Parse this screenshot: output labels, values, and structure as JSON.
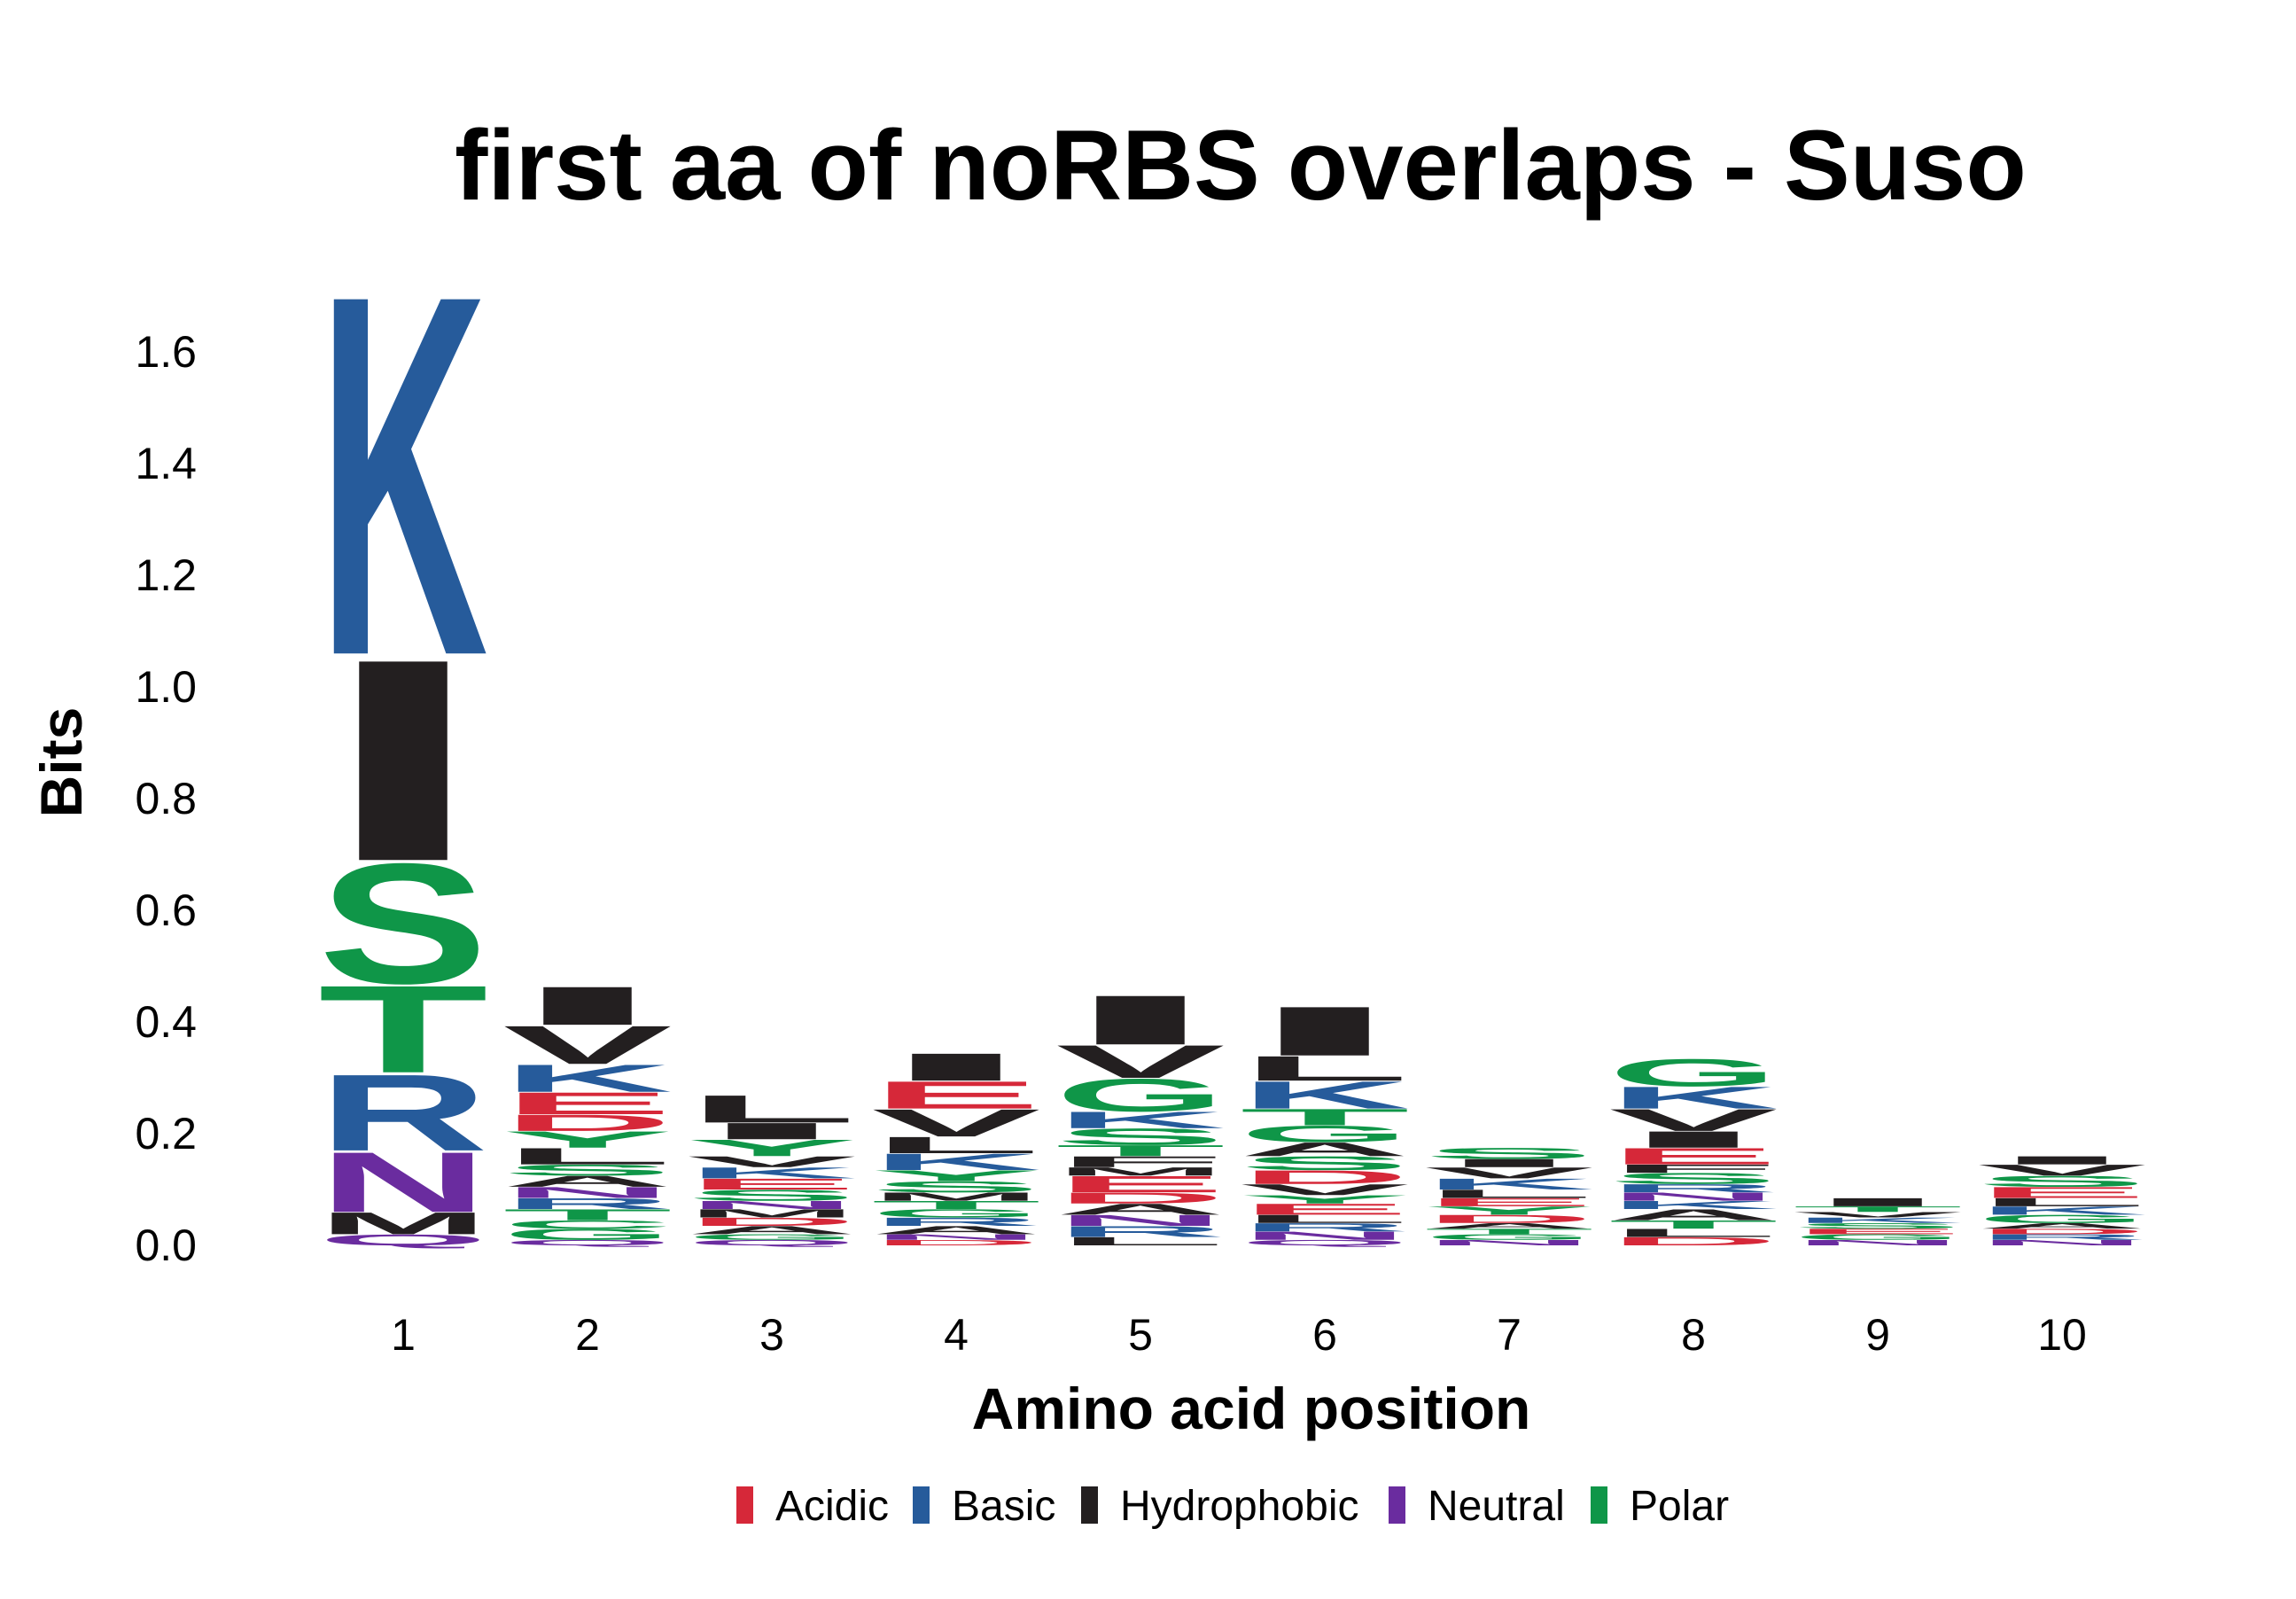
{
  "chart_data": {
    "type": "sequence-logo",
    "title": "first aa of noRBS overlaps - Suso",
    "xlabel": "Amino acid position",
    "ylabel": "Bits",
    "ylim": [
      0,
      1.72
    ],
    "yticks": [
      "0.0",
      "0.2",
      "0.4",
      "0.6",
      "0.8",
      "1.0",
      "1.2",
      "1.4",
      "1.6"
    ],
    "ytick_values": [
      0,
      0.2,
      0.4,
      0.6,
      0.8,
      1.0,
      1.2,
      1.4,
      1.6
    ],
    "legend_position": "bottom",
    "legend": [
      {
        "label": "Acidic",
        "color": "#d62839"
      },
      {
        "label": "Basic",
        "color": "#265b9b"
      },
      {
        "label": "Hydrophobic",
        "color": "#231f20"
      },
      {
        "label": "Neutral",
        "color": "#6a2c9f"
      },
      {
        "label": "Polar",
        "color": "#0f9648"
      }
    ],
    "class_colors": {
      "Acidic": "#d62839",
      "Basic": "#265b9b",
      "Hydrophobic": "#231f20",
      "Neutral": "#6a2c9f",
      "Polar": "#0f9648"
    },
    "positions": [
      {
        "label": "1",
        "stack": [
          {
            "aa": "Q",
            "class": "Neutral",
            "bits": 0.02
          },
          {
            "aa": "M",
            "class": "Hydrophobic",
            "bits": 0.04
          },
          {
            "aa": "N",
            "class": "Neutral",
            "bits": 0.11
          },
          {
            "aa": "R",
            "class": "Basic",
            "bits": 0.14
          },
          {
            "aa": "T",
            "class": "Polar",
            "bits": 0.16
          },
          {
            "aa": "S",
            "class": "Polar",
            "bits": 0.22
          },
          {
            "aa": "I",
            "class": "Hydrophobic",
            "bits": 0.37
          },
          {
            "aa": "K",
            "class": "Basic",
            "bits": 0.66
          }
        ]
      },
      {
        "label": "2",
        "stack": [
          {
            "aa": "Q",
            "class": "Neutral",
            "bits": 0.01
          },
          {
            "aa": "G",
            "class": "Polar",
            "bits": 0.02
          },
          {
            "aa": "C",
            "class": "Polar",
            "bits": 0.015
          },
          {
            "aa": "T",
            "class": "Polar",
            "bits": 0.02
          },
          {
            "aa": "R",
            "class": "Basic",
            "bits": 0.02
          },
          {
            "aa": "N",
            "class": "Neutral",
            "bits": 0.02
          },
          {
            "aa": "A",
            "class": "Hydrophobic",
            "bits": 0.02
          },
          {
            "aa": "S",
            "class": "Polar",
            "bits": 0.02
          },
          {
            "aa": "L",
            "class": "Hydrophobic",
            "bits": 0.03
          },
          {
            "aa": "Y",
            "class": "Polar",
            "bits": 0.03
          },
          {
            "aa": "D",
            "class": "Acidic",
            "bits": 0.03
          },
          {
            "aa": "E",
            "class": "Acidic",
            "bits": 0.04
          },
          {
            "aa": "K",
            "class": "Basic",
            "bits": 0.05
          },
          {
            "aa": "V",
            "class": "Hydrophobic",
            "bits": 0.07
          },
          {
            "aa": "I",
            "class": "Hydrophobic",
            "bits": 0.07
          }
        ]
      },
      {
        "label": "3",
        "stack": [
          {
            "aa": "Q",
            "class": "Neutral",
            "bits": 0.01
          },
          {
            "aa": "G",
            "class": "Polar",
            "bits": 0.01
          },
          {
            "aa": "A",
            "class": "Hydrophobic",
            "bits": 0.015
          },
          {
            "aa": "D",
            "class": "Acidic",
            "bits": 0.015
          },
          {
            "aa": "M",
            "class": "Hydrophobic",
            "bits": 0.015
          },
          {
            "aa": "N",
            "class": "Neutral",
            "bits": 0.015
          },
          {
            "aa": "S",
            "class": "Polar",
            "bits": 0.02
          },
          {
            "aa": "E",
            "class": "Acidic",
            "bits": 0.02
          },
          {
            "aa": "K",
            "class": "Basic",
            "bits": 0.02
          },
          {
            "aa": "V",
            "class": "Hydrophobic",
            "bits": 0.02
          },
          {
            "aa": "Y",
            "class": "Polar",
            "bits": 0.03
          },
          {
            "aa": "I",
            "class": "Hydrophobic",
            "bits": 0.03
          },
          {
            "aa": "L",
            "class": "Hydrophobic",
            "bits": 0.05
          }
        ]
      },
      {
        "label": "4",
        "stack": [
          {
            "aa": "D",
            "class": "Acidic",
            "bits": 0.01
          },
          {
            "aa": "N",
            "class": "Neutral",
            "bits": 0.01
          },
          {
            "aa": "A",
            "class": "Hydrophobic",
            "bits": 0.015
          },
          {
            "aa": "R",
            "class": "Basic",
            "bits": 0.015
          },
          {
            "aa": "G",
            "class": "Polar",
            "bits": 0.015
          },
          {
            "aa": "T",
            "class": "Polar",
            "bits": 0.015
          },
          {
            "aa": "M",
            "class": "Hydrophobic",
            "bits": 0.015
          },
          {
            "aa": "S",
            "class": "Polar",
            "bits": 0.02
          },
          {
            "aa": "Y",
            "class": "Polar",
            "bits": 0.02
          },
          {
            "aa": "K",
            "class": "Basic",
            "bits": 0.03
          },
          {
            "aa": "L",
            "class": "Hydrophobic",
            "bits": 0.03
          },
          {
            "aa": "V",
            "class": "Hydrophobic",
            "bits": 0.05
          },
          {
            "aa": "E",
            "class": "Acidic",
            "bits": 0.05
          },
          {
            "aa": "I",
            "class": "Hydrophobic",
            "bits": 0.05
          }
        ]
      },
      {
        "label": "5",
        "stack": [
          {
            "aa": "L",
            "class": "Hydrophobic",
            "bits": 0.015
          },
          {
            "aa": "R",
            "class": "Basic",
            "bits": 0.02
          },
          {
            "aa": "N",
            "class": "Neutral",
            "bits": 0.02
          },
          {
            "aa": "A",
            "class": "Hydrophobic",
            "bits": 0.02
          },
          {
            "aa": "D",
            "class": "Acidic",
            "bits": 0.02
          },
          {
            "aa": "E",
            "class": "Acidic",
            "bits": 0.03
          },
          {
            "aa": "M",
            "class": "Hydrophobic",
            "bits": 0.015
          },
          {
            "aa": "F",
            "class": "Hydrophobic",
            "bits": 0.02
          },
          {
            "aa": "T",
            "class": "Polar",
            "bits": 0.02
          },
          {
            "aa": "S",
            "class": "Polar",
            "bits": 0.03
          },
          {
            "aa": "K",
            "class": "Basic",
            "bits": 0.03
          },
          {
            "aa": "G",
            "class": "Polar",
            "bits": 0.06
          },
          {
            "aa": "V",
            "class": "Hydrophobic",
            "bits": 0.06
          },
          {
            "aa": "I",
            "class": "Hydrophobic",
            "bits": 0.09
          }
        ]
      },
      {
        "label": "6",
        "stack": [
          {
            "aa": "Q",
            "class": "Neutral",
            "bits": 0.01
          },
          {
            "aa": "N",
            "class": "Neutral",
            "bits": 0.015
          },
          {
            "aa": "R",
            "class": "Basic",
            "bits": 0.015
          },
          {
            "aa": "L",
            "class": "Hydrophobic",
            "bits": 0.015
          },
          {
            "aa": "E",
            "class": "Acidic",
            "bits": 0.02
          },
          {
            "aa": "Y",
            "class": "Polar",
            "bits": 0.015
          },
          {
            "aa": "V",
            "class": "Hydrophobic",
            "bits": 0.02
          },
          {
            "aa": "D",
            "class": "Acidic",
            "bits": 0.025
          },
          {
            "aa": "S",
            "class": "Polar",
            "bits": 0.025
          },
          {
            "aa": "A",
            "class": "Hydrophobic",
            "bits": 0.025
          },
          {
            "aa": "G",
            "class": "Polar",
            "bits": 0.03
          },
          {
            "aa": "T",
            "class": "Polar",
            "bits": 0.03
          },
          {
            "aa": "K",
            "class": "Basic",
            "bits": 0.05
          },
          {
            "aa": "L",
            "class": "Hydrophobic",
            "bits": 0.045
          },
          {
            "aa": "I",
            "class": "Hydrophobic",
            "bits": 0.09
          }
        ]
      },
      {
        "label": "7",
        "stack": [
          {
            "aa": "N",
            "class": "Neutral",
            "bits": 0.01
          },
          {
            "aa": "G",
            "class": "Polar",
            "bits": 0.01
          },
          {
            "aa": "T",
            "class": "Polar",
            "bits": 0.01
          },
          {
            "aa": "A",
            "class": "Hydrophobic",
            "bits": 0.01
          },
          {
            "aa": "D",
            "class": "Acidic",
            "bits": 0.015
          },
          {
            "aa": "Y",
            "class": "Polar",
            "bits": 0.015
          },
          {
            "aa": "E",
            "class": "Acidic",
            "bits": 0.015
          },
          {
            "aa": "L",
            "class": "Hydrophobic",
            "bits": 0.015
          },
          {
            "aa": "K",
            "class": "Basic",
            "bits": 0.02
          },
          {
            "aa": "V",
            "class": "Hydrophobic",
            "bits": 0.02
          },
          {
            "aa": "I",
            "class": "Hydrophobic",
            "bits": 0.015
          },
          {
            "aa": "S",
            "class": "Polar",
            "bits": 0.02
          }
        ]
      },
      {
        "label": "8",
        "stack": [
          {
            "aa": "D",
            "class": "Acidic",
            "bits": 0.015
          },
          {
            "aa": "L",
            "class": "Hydrophobic",
            "bits": 0.015
          },
          {
            "aa": "T",
            "class": "Polar",
            "bits": 0.015
          },
          {
            "aa": "A",
            "class": "Hydrophobic",
            "bits": 0.02
          },
          {
            "aa": "K",
            "class": "Basic",
            "bits": 0.015
          },
          {
            "aa": "N",
            "class": "Neutral",
            "bits": 0.015
          },
          {
            "aa": "R",
            "class": "Basic",
            "bits": 0.015
          },
          {
            "aa": "S",
            "class": "Polar",
            "bits": 0.02
          },
          {
            "aa": "F",
            "class": "Hydrophobic",
            "bits": 0.015
          },
          {
            "aa": "E",
            "class": "Acidic",
            "bits": 0.03
          },
          {
            "aa": "I",
            "class": "Hydrophobic",
            "bits": 0.03
          },
          {
            "aa": "V",
            "class": "Hydrophobic",
            "bits": 0.04
          },
          {
            "aa": "K",
            "class": "Basic",
            "bits": 0.04
          },
          {
            "aa": "G",
            "class": "Polar",
            "bits": 0.05
          }
        ]
      },
      {
        "label": "9",
        "stack": [
          {
            "aa": "N",
            "class": "Neutral",
            "bits": 0.01
          },
          {
            "aa": "G",
            "class": "Polar",
            "bits": 0.01
          },
          {
            "aa": "E",
            "class": "Acidic",
            "bits": 0.01
          },
          {
            "aa": "S",
            "class": "Polar",
            "bits": 0.01
          },
          {
            "aa": "K",
            "class": "Basic",
            "bits": 0.01
          },
          {
            "aa": "V",
            "class": "Hydrophobic",
            "bits": 0.01
          },
          {
            "aa": "T",
            "class": "Polar",
            "bits": 0.01
          },
          {
            "aa": "I",
            "class": "Hydrophobic",
            "bits": 0.015
          }
        ]
      },
      {
        "label": "10",
        "stack": [
          {
            "aa": "N",
            "class": "Neutral",
            "bits": 0.01
          },
          {
            "aa": "R",
            "class": "Basic",
            "bits": 0.01
          },
          {
            "aa": "D",
            "class": "Acidic",
            "bits": 0.01
          },
          {
            "aa": "A",
            "class": "Hydrophobic",
            "bits": 0.01
          },
          {
            "aa": "G",
            "class": "Polar",
            "bits": 0.015
          },
          {
            "aa": "K",
            "class": "Basic",
            "bits": 0.015
          },
          {
            "aa": "L",
            "class": "Hydrophobic",
            "bits": 0.015
          },
          {
            "aa": "E",
            "class": "Acidic",
            "bits": 0.02
          },
          {
            "aa": "S",
            "class": "Polar",
            "bits": 0.02
          },
          {
            "aa": "V",
            "class": "Hydrophobic",
            "bits": 0.02
          },
          {
            "aa": "I",
            "class": "Hydrophobic",
            "bits": 0.015
          }
        ]
      }
    ]
  }
}
